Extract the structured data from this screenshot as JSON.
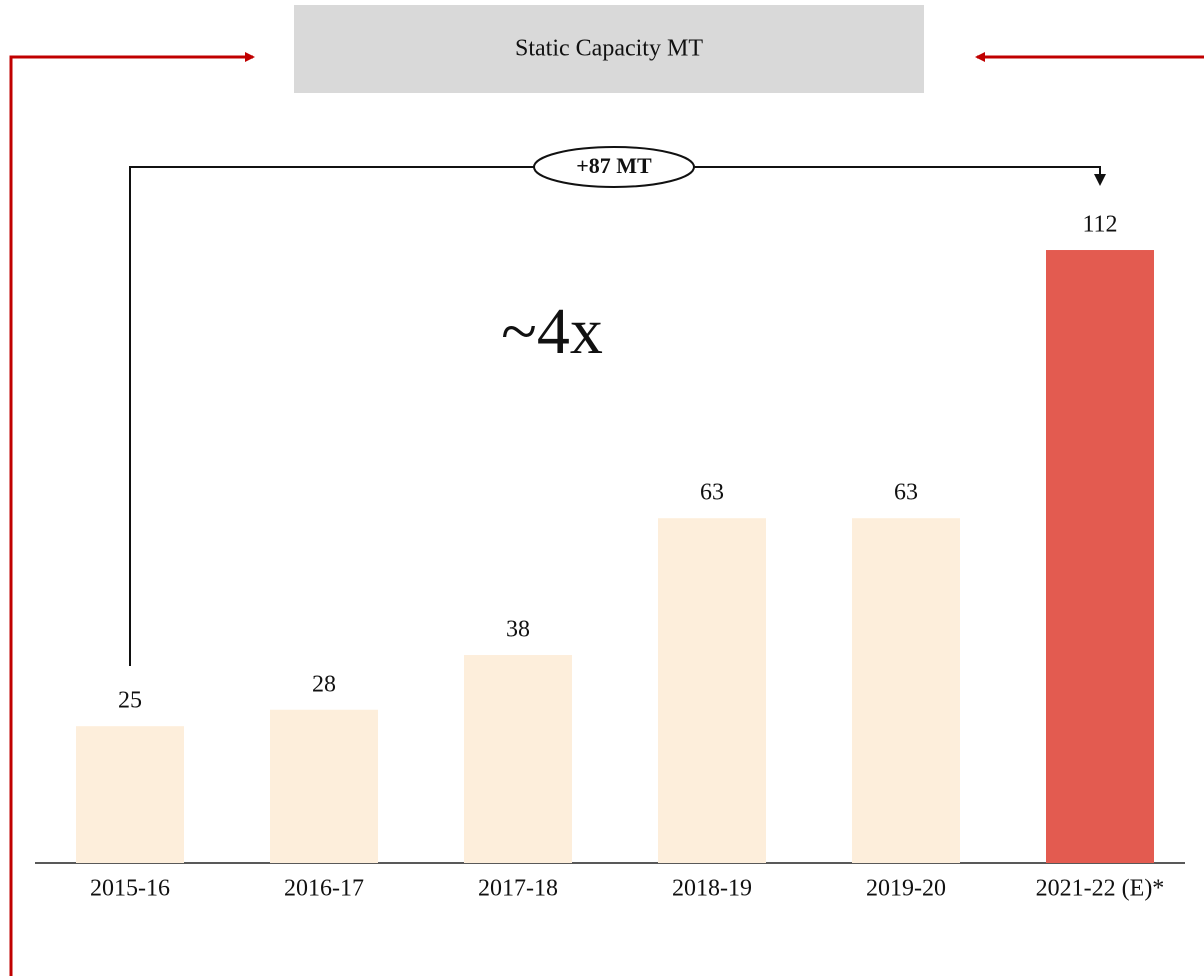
{
  "chart_data": {
    "type": "bar",
    "title": "Static Capacity MT",
    "categories": [
      "2015-16",
      "2016-17",
      "2017-18",
      "2018-19",
      "2019-20",
      "2021-22 (E)*"
    ],
    "values": [
      25,
      28,
      38,
      63,
      63,
      112
    ],
    "colors": [
      "#fdeedb",
      "#fdeedb",
      "#fdeedb",
      "#fdeedb",
      "#fdeedb",
      "#e35b50"
    ],
    "annotations": [
      "+87 MT",
      "~4x"
    ]
  }
}
